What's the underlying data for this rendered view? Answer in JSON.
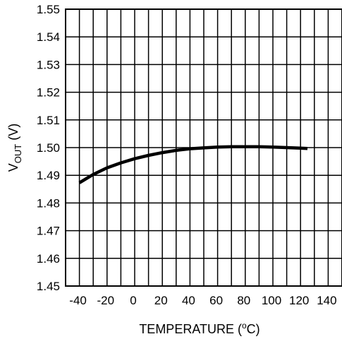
{
  "chart_data": {
    "type": "line",
    "xlabel": "TEMPERATURE (°C)",
    "ylabel": "V_OUT (V)",
    "ylabel_main": "V",
    "ylabel_sub": "OUT",
    "ylabel_unit": " (V)",
    "xlabel_main": "TEMPERATURE (",
    "xlabel_sup": "o",
    "xlabel_end": "C)",
    "xlim": [
      -50,
      150
    ],
    "ylim": [
      1.45,
      1.55
    ],
    "grid": true,
    "x_ticks": [
      "-40",
      "-20",
      "0",
      "20",
      "40",
      "60",
      "80",
      "100",
      "120",
      "140"
    ],
    "y_ticks": [
      "1.45",
      "1.46",
      "1.47",
      "1.48",
      "1.49",
      "1.50",
      "1.51",
      "1.52",
      "1.53",
      "1.54",
      "1.55"
    ],
    "series": [
      {
        "x": [
          -40,
          -30,
          -20,
          -10,
          0,
          10,
          20,
          30,
          40,
          50,
          60,
          70,
          80,
          90,
          100,
          110,
          120,
          125
        ],
        "y": [
          1.4873,
          1.4903,
          1.4927,
          1.4945,
          1.496,
          1.4972,
          1.4982,
          1.499,
          1.4996,
          1.4999,
          1.5002,
          1.5003,
          1.5003,
          1.5003,
          1.5002,
          1.5,
          1.4998,
          1.4997
        ]
      }
    ]
  }
}
